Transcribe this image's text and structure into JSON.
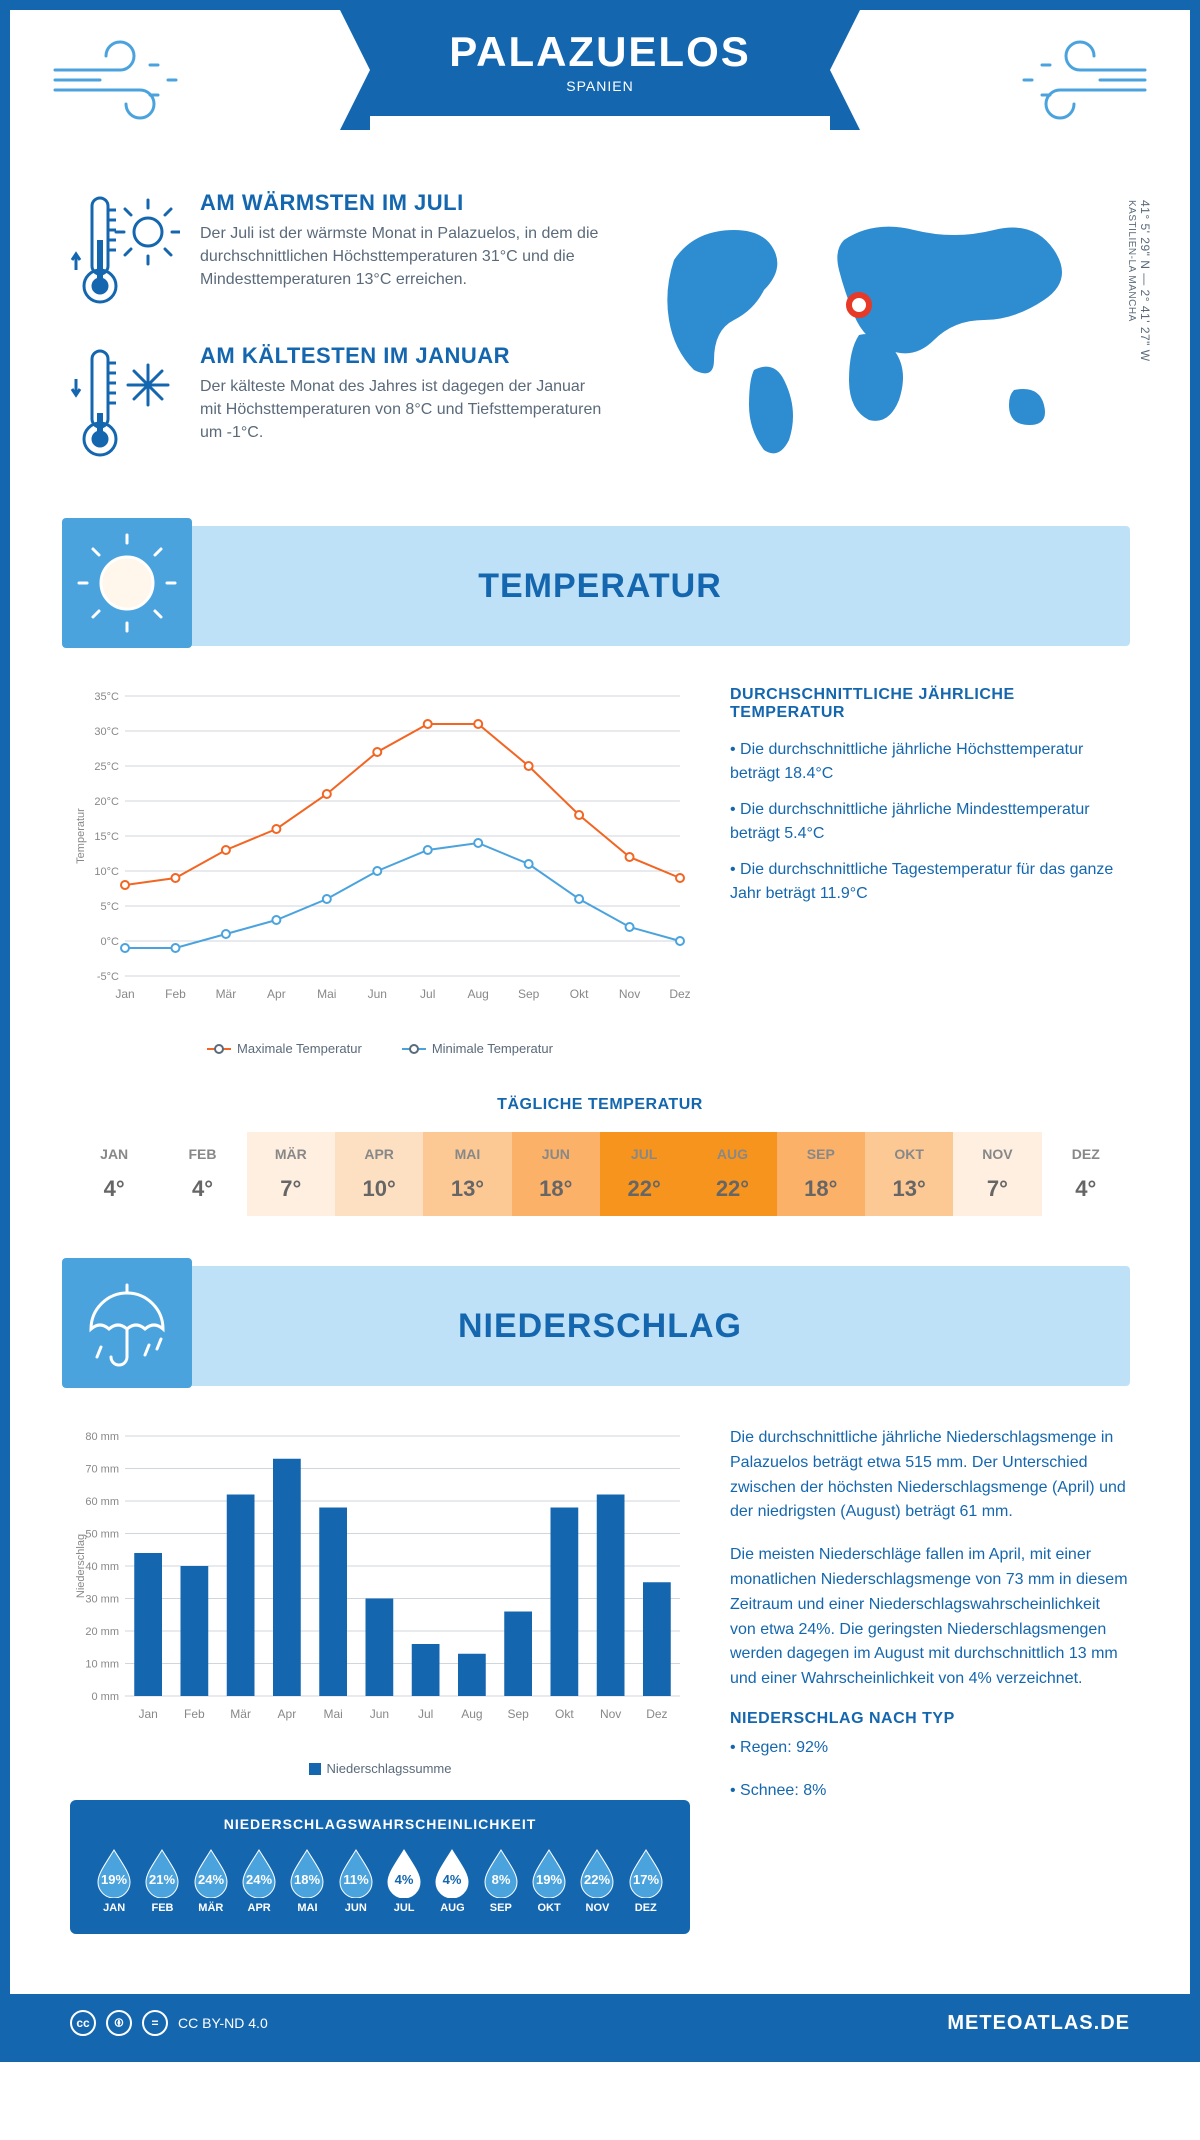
{
  "header": {
    "title": "PALAZUELOS",
    "subtitle": "SPANIEN"
  },
  "coords": "41° 5' 29\" N — 2° 41' 27\" W",
  "region": "KASTILIEN-LA MANCHA",
  "colors": {
    "brand": "#1467af",
    "lightblue": "#bfe1f7",
    "midblue": "#4ba3de",
    "orange": "#f26522",
    "blueLine": "#4ba3de",
    "grey": "#888"
  },
  "warmest": {
    "title": "AM WÄRMSTEN IM JULI",
    "text": "Der Juli ist der wärmste Monat in Palazuelos, in dem die durchschnittlichen Höchsttemperaturen 31°C und die Mindesttemperaturen 13°C erreichen."
  },
  "coldest": {
    "title": "AM KÄLTESTEN IM JANUAR",
    "text": "Der kälteste Monat des Jahres ist dagegen der Januar mit Höchsttemperaturen von 8°C und Tiefsttemperaturen um -1°C."
  },
  "tempSection": {
    "title": "TEMPERATUR"
  },
  "tempChart": {
    "months": [
      "Jan",
      "Feb",
      "Mär",
      "Apr",
      "Mai",
      "Jun",
      "Jul",
      "Aug",
      "Sep",
      "Okt",
      "Nov",
      "Dez"
    ],
    "max": [
      8,
      9,
      13,
      16,
      21,
      27,
      31,
      31,
      25,
      18,
      12,
      9
    ],
    "min": [
      -1,
      -1,
      1,
      3,
      6,
      10,
      13,
      14,
      11,
      6,
      2,
      0
    ],
    "ylim": [
      -5,
      35
    ],
    "ytick": 5,
    "maxColor": "#f26522",
    "minColor": "#4ba3de",
    "gridColor": "#d0d6dc",
    "ylabel": "Temperatur",
    "legendMax": "Maximale Temperatur",
    "legendMin": "Minimale Temperatur"
  },
  "tempDesc": {
    "title": "DURCHSCHNITTLICHE JÄHRLICHE TEMPERATUR",
    "b1": "• Die durchschnittliche jährliche Höchsttemperatur beträgt 18.4°C",
    "b2": "• Die durchschnittliche jährliche Mindesttemperatur beträgt 5.4°C",
    "b3": "• Die durchschnittliche Tagestemperatur für das ganze Jahr beträgt 11.9°C"
  },
  "dailyTemp": {
    "title": "TÄGLICHE TEMPERATUR",
    "months": [
      "JAN",
      "FEB",
      "MÄR",
      "APR",
      "MAI",
      "JUN",
      "JUL",
      "AUG",
      "SEP",
      "OKT",
      "NOV",
      "DEZ"
    ],
    "values": [
      "4°",
      "4°",
      "7°",
      "10°",
      "13°",
      "18°",
      "22°",
      "22°",
      "18°",
      "13°",
      "7°",
      "4°"
    ],
    "colors": [
      "#ffffff",
      "#ffffff",
      "#feefe0",
      "#fde0c2",
      "#fcc994",
      "#fbb168",
      "#f7941d",
      "#f7941d",
      "#fbb168",
      "#fcc994",
      "#feefe0",
      "#ffffff"
    ]
  },
  "precipSection": {
    "title": "NIEDERSCHLAG"
  },
  "precipChart": {
    "months": [
      "Jan",
      "Feb",
      "Mär",
      "Apr",
      "Mai",
      "Jun",
      "Jul",
      "Aug",
      "Sep",
      "Okt",
      "Nov",
      "Dez"
    ],
    "values": [
      44,
      40,
      62,
      73,
      58,
      30,
      16,
      13,
      26,
      58,
      62,
      35
    ],
    "ylim": [
      0,
      80
    ],
    "ytick": 10,
    "barColor": "#1467af",
    "gridColor": "#d0d6dc",
    "ylabel": "Niederschlag",
    "legend": "Niederschlagssumme"
  },
  "precipDesc": {
    "p1": "Die durchschnittliche jährliche Niederschlagsmenge in Palazuelos beträgt etwa 515 mm. Der Unterschied zwischen der höchsten Niederschlagsmenge (April) und der niedrigsten (August) beträgt 61 mm.",
    "p2": "Die meisten Niederschläge fallen im April, mit einer monatlichen Niederschlagsmenge von 73 mm in diesem Zeitraum und einer Niederschlagswahrscheinlichkeit von etwa 24%. Die geringsten Niederschlagsmengen werden dagegen im August mit durchschnittlich 13 mm und einer Wahrscheinlichkeit von 4% verzeichnet.",
    "typeTitle": "NIEDERSCHLAG NACH TYP",
    "t1": "• Regen: 92%",
    "t2": "• Schnee: 8%"
  },
  "precipProb": {
    "title": "NIEDERSCHLAGSWAHRSCHEINLICHKEIT",
    "months": [
      "JAN",
      "FEB",
      "MÄR",
      "APR",
      "MAI",
      "JUN",
      "JUL",
      "AUG",
      "SEP",
      "OKT",
      "NOV",
      "DEZ"
    ],
    "values": [
      19,
      21,
      24,
      24,
      18,
      11,
      4,
      4,
      8,
      19,
      22,
      17
    ]
  },
  "footer": {
    "license": "CC BY-ND 4.0",
    "site": "METEOATLAS.DE"
  }
}
